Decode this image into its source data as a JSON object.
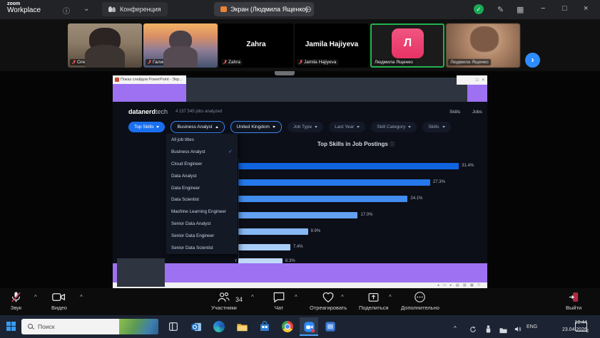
{
  "icons": {
    "info": "ⓘ",
    "chevron_down": "⌄",
    "stop_share": "⊖",
    "pencil": "✎",
    "grid": "▦",
    "minimize": "−",
    "maximize": "□",
    "close": "×",
    "check": "✓",
    "chevron_right": "›",
    "window_restore": "□",
    "window_close": "×",
    "ellipsis": "⋯",
    "up_caret": "^",
    "slideshow_controls": "◂ ▭ ▸  ▤ ▥ ▦ ▽"
  },
  "top_bar": {
    "logo_line1": "zoom",
    "logo_line2": "Workplace",
    "tab_meeting": "Конференция",
    "tab_screen": "Экран (Людмила Ященко)"
  },
  "filmstrip": {
    "participants": [
      {
        "name": "Олена Горобець"
      },
      {
        "name": "Галина Голубова"
      },
      {
        "name": "Zahra"
      },
      {
        "name": "Jamila Hajiyeva"
      },
      {
        "name": "Людмила Ященко",
        "avatar_letter": "Л",
        "active": true
      },
      {
        "name": "Людмила Ященко"
      }
    ]
  },
  "shared_screen": {
    "ppt_title": "Показ слайдов PowerPoint - Экр...",
    "site": {
      "brand_bold": "datanerd",
      "brand_light": "tech",
      "jobs_analyzed": "4 157 545 jobs analyzed",
      "nav_skills": "Skills",
      "nav_jobs": "Jobs"
    },
    "filters": [
      {
        "label": "Top Skills"
      },
      {
        "label": "Business Analyst"
      },
      {
        "label": "United Kingdom"
      },
      {
        "label": "Job Type"
      },
      {
        "label": "Last Year"
      },
      {
        "label": "Skill Category"
      },
      {
        "label": "Skills"
      }
    ],
    "dropdown": {
      "items": [
        "All job titles",
        "Business Analyst",
        "Cloud Engineer",
        "Data Analyst",
        "Data Engineer",
        "Data Scientist",
        "Machine Learning Engineer",
        "Senior Data Analyst",
        "Senior Data Engineer",
        "Senior Data Scientist"
      ],
      "selected": "Business Analyst"
    }
  },
  "chart_data": {
    "type": "bar",
    "orientation": "horizontal",
    "title": "Top Skills in Job Postings",
    "categories": [
      "",
      "",
      "",
      "",
      "",
      "",
      "r"
    ],
    "values": [
      31.4,
      27.3,
      24.1,
      17.0,
      9.9,
      7.4,
      6.3
    ],
    "value_labels": [
      "31.4%",
      "27.3%",
      "24.1%",
      "17.0%",
      "9.9%",
      "7.4%",
      "6.3%"
    ],
    "xlim": [
      0,
      33
    ],
    "bar_colors": [
      "#1064e0",
      "#2578ea",
      "#418ced",
      "#63a2f1",
      "#86b8f4",
      "#a8cdf7",
      "#bfdaf9"
    ],
    "legend": null,
    "grid": false
  },
  "toolbar": {
    "items": [
      {
        "label": "Звук"
      },
      {
        "label": "Видео"
      },
      {
        "label": "Участники",
        "count": "34"
      },
      {
        "label": "Чат"
      },
      {
        "label": "Отреагировать"
      },
      {
        "label": "Поделиться"
      },
      {
        "label": "Дополнительно"
      },
      {
        "label": "Выйти"
      }
    ]
  },
  "taskbar": {
    "search_placeholder": "Поиск",
    "language": "ENG",
    "time": "10:44",
    "date": "23.04.2026",
    "notification_badge": "2"
  }
}
